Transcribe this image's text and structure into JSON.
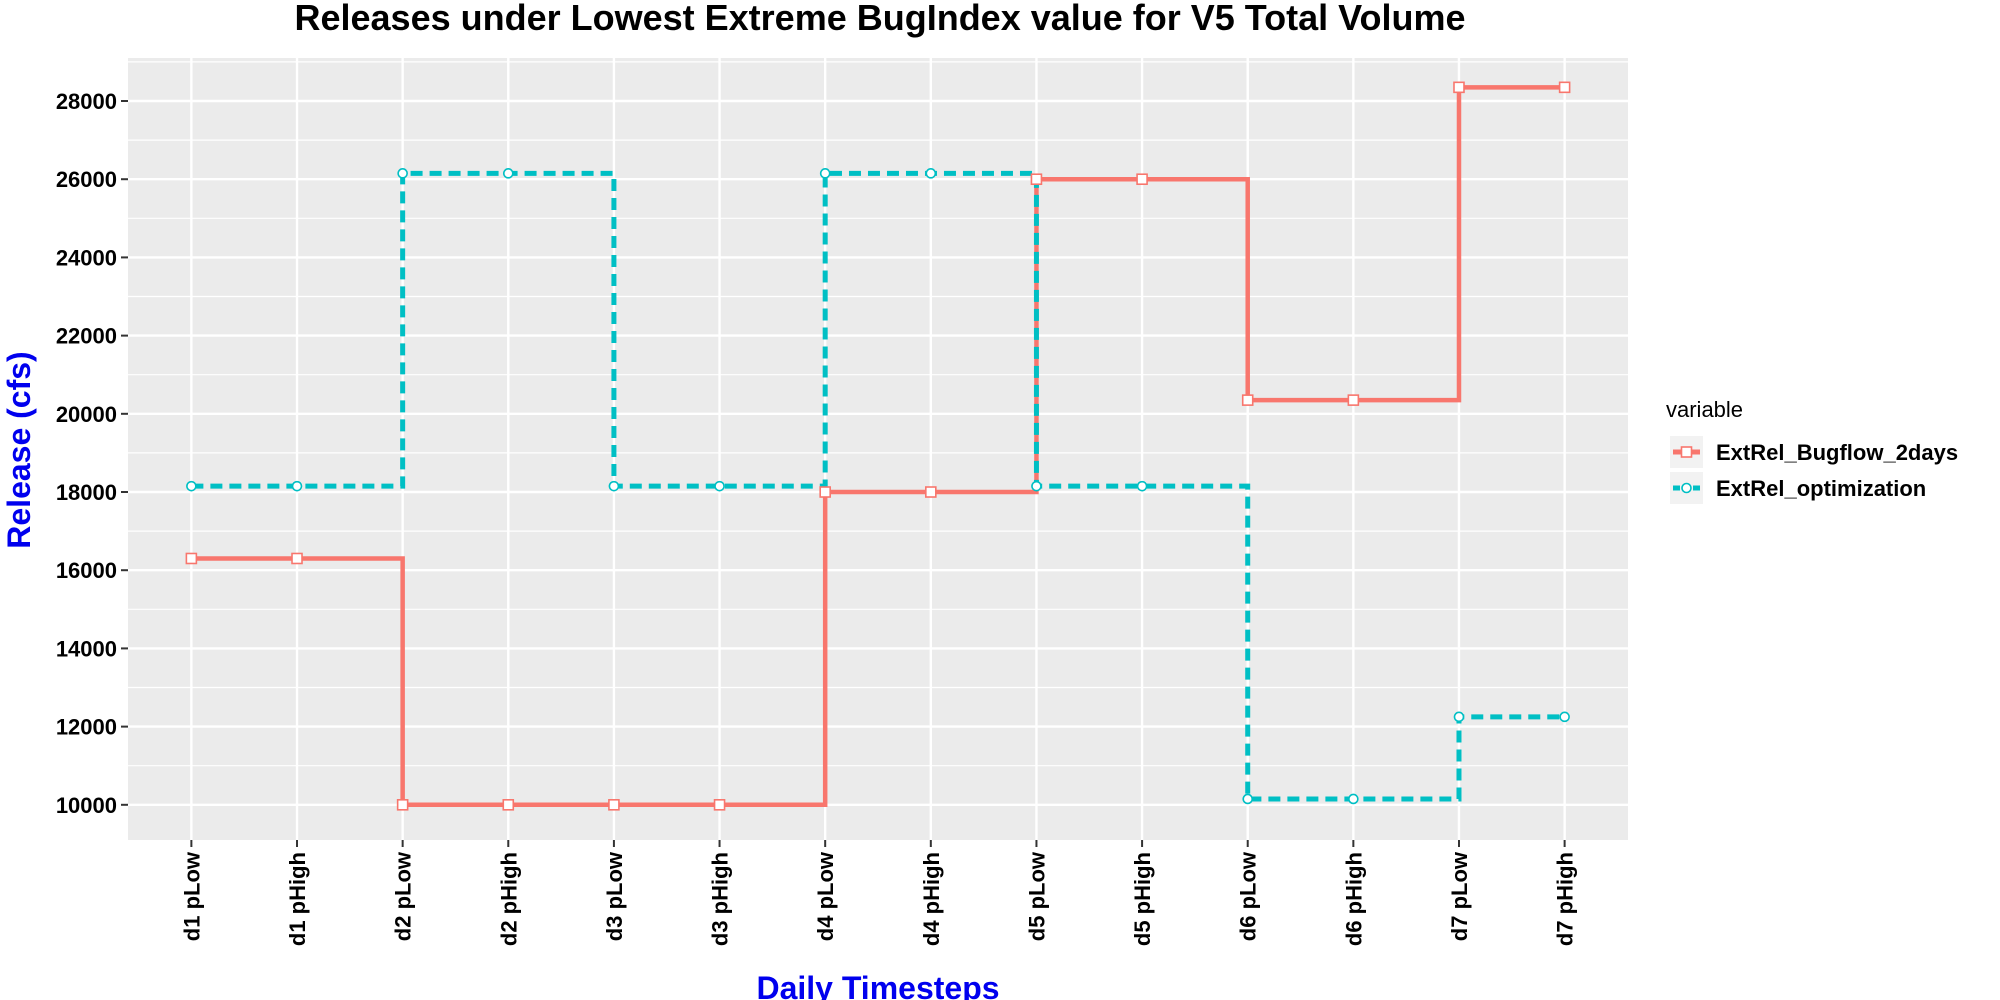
{
  "chart_data": {
    "type": "line",
    "step": true,
    "title": "Releases under Lowest Extreme BugIndex value for V5 Total Volume",
    "xlabel": "Daily Timesteps",
    "ylabel": "Release (cfs)",
    "categories": [
      "d1 pLow",
      "d1 pHigh",
      "d2 pLow",
      "d2 pHigh",
      "d3 pLow",
      "d3 pHigh",
      "d4 pLow",
      "d4 pHigh",
      "d5 pLow",
      "d5 pHigh",
      "d6 pLow",
      "d6 pHigh",
      "d7 pLow",
      "d7 pHigh"
    ],
    "ylim": [
      9100,
      29100
    ],
    "yticks": [
      10000,
      12000,
      14000,
      16000,
      18000,
      20000,
      22000,
      24000,
      26000,
      28000
    ],
    "grid": true,
    "legend_title": "variable",
    "legend_position": "right",
    "series": [
      {
        "name": "ExtRel_Bugflow_2days",
        "color": "#F8766D",
        "line_style": "solid",
        "marker": "square",
        "values": [
          16300,
          16300,
          10000,
          10000,
          10000,
          10000,
          18000,
          18000,
          26000,
          26000,
          20350,
          20350,
          28350,
          28350
        ]
      },
      {
        "name": "ExtRel_optimization",
        "color": "#00BFC4",
        "line_style": "dashed",
        "marker": "circle",
        "values": [
          18150,
          18150,
          26150,
          26150,
          18150,
          18150,
          26150,
          26150,
          18150,
          18150,
          10150,
          10150,
          12250,
          12250
        ]
      }
    ]
  }
}
